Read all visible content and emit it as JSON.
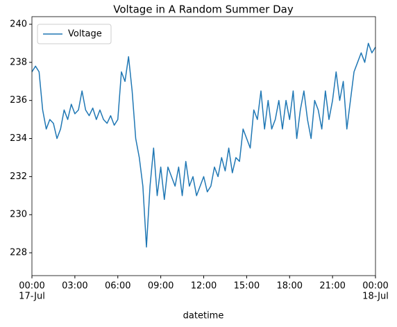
{
  "chart_data": {
    "type": "line",
    "title": "Voltage in A Random Summer Day",
    "xlabel": "datetime",
    "x": [
      0,
      0.25,
      0.5,
      0.75,
      1,
      1.25,
      1.5,
      1.75,
      2,
      2.25,
      2.5,
      2.75,
      3,
      3.25,
      3.5,
      3.75,
      4,
      4.25,
      4.5,
      4.75,
      5,
      5.25,
      5.5,
      5.75,
      6,
      6.25,
      6.5,
      6.75,
      7,
      7.25,
      7.5,
      7.75,
      8,
      8.25,
      8.5,
      8.75,
      9,
      9.25,
      9.5,
      9.75,
      10,
      10.25,
      10.5,
      10.75,
      11,
      11.25,
      11.5,
      11.75,
      12,
      12.25,
      12.5,
      12.75,
      13,
      13.25,
      13.5,
      13.75,
      14,
      14.25,
      14.5,
      14.75,
      15,
      15.25,
      15.5,
      15.75,
      16,
      16.25,
      16.5,
      16.75,
      17,
      17.25,
      17.5,
      17.75,
      18,
      18.25,
      18.5,
      18.75,
      19,
      19.25,
      19.5,
      19.75,
      20,
      20.25,
      20.5,
      20.75,
      21,
      21.25,
      21.5,
      21.75,
      22,
      22.25,
      22.5,
      22.75,
      23,
      23.25,
      23.5,
      23.75,
      24
    ],
    "series": [
      {
        "name": "Voltage",
        "color": "#1f77b4",
        "values": [
          237.5,
          237.8,
          237.5,
          235.5,
          234.5,
          235.0,
          234.8,
          234.0,
          234.5,
          235.5,
          235.0,
          235.8,
          235.3,
          235.5,
          236.5,
          235.5,
          235.2,
          235.6,
          235.0,
          235.5,
          235.0,
          234.8,
          235.2,
          234.7,
          235.0,
          237.5,
          237.0,
          238.3,
          236.5,
          234.0,
          233.0,
          231.5,
          228.3,
          231.5,
          233.5,
          231.0,
          232.5,
          230.8,
          232.5,
          232.0,
          231.5,
          232.5,
          231.0,
          232.8,
          231.5,
          232.0,
          231.0,
          231.5,
          232.0,
          231.2,
          231.5,
          232.5,
          232.0,
          233.0,
          232.3,
          233.5,
          232.2,
          233.0,
          232.8,
          234.5,
          234.0,
          233.5,
          235.5,
          235.0,
          236.5,
          234.5,
          236.0,
          234.5,
          235.0,
          236.0,
          234.5,
          236.0,
          235.0,
          236.5,
          234.0,
          235.5,
          236.5,
          235.0,
          234.0,
          236.0,
          235.5,
          234.5,
          236.5,
          235.0,
          236.0,
          237.5,
          236.0,
          237.0,
          234.5,
          236.0,
          237.5,
          238.0,
          238.5,
          238.0,
          239.0,
          238.5,
          238.8
        ]
      }
    ],
    "xlim": [
      0,
      24
    ],
    "xticks": [
      {
        "value": 0,
        "label": "00:00"
      },
      {
        "value": 3,
        "label": "03:00"
      },
      {
        "value": 6,
        "label": "06:00"
      },
      {
        "value": 9,
        "label": "09:00"
      },
      {
        "value": 12,
        "label": "12:00"
      },
      {
        "value": 15,
        "label": "15:00"
      },
      {
        "value": 18,
        "label": "18:00"
      },
      {
        "value": 21,
        "label": "21:00"
      },
      {
        "value": 24,
        "label": "00:00"
      }
    ],
    "x_date_labels": [
      {
        "value": 0,
        "label": "17-Jul"
      },
      {
        "value": 24,
        "label": "18-Jul"
      }
    ],
    "ylim": [
      226.8,
      240.4
    ],
    "yticks": [
      228,
      230,
      232,
      234,
      236,
      238,
      240
    ],
    "legend": "upper left",
    "grid": false
  }
}
